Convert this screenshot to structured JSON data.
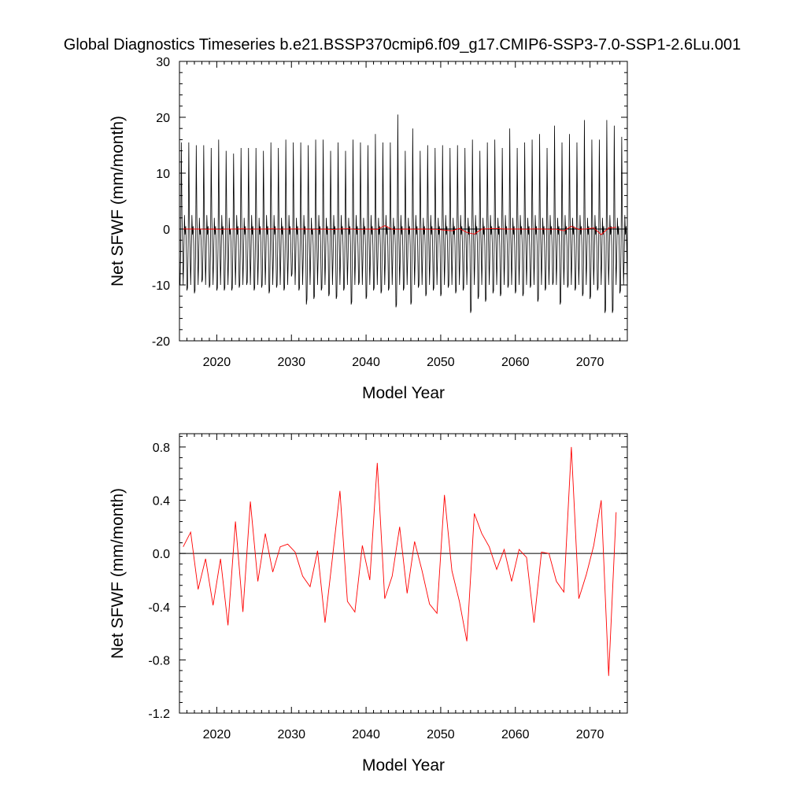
{
  "title": "Global Diagnostics Timeseries b.e21.BSSP370cmip6.f09_g17.CMIP6-SSP3-7.0-SSP1-2.6Lu.001",
  "colors": {
    "monthly_series": "#000000",
    "annual_series": "#ff0000",
    "zero_line": "#000000"
  },
  "chart_data": [
    {
      "type": "line",
      "xlabel": "Model Year",
      "ylabel": "Net SFWF (mm/month)",
      "xlim": [
        2015,
        2075
      ],
      "ylim": [
        -20,
        30
      ],
      "xticks": [
        2020,
        2030,
        2040,
        2050,
        2060,
        2070
      ],
      "yticks": [
        -20,
        -10,
        0,
        10,
        20,
        30
      ],
      "ytick_labels": [
        "-20",
        "-10",
        "0",
        "10",
        "20",
        "30"
      ],
      "grid": false,
      "reference_line": 0,
      "series": [
        {
          "color": "#000000",
          "sampling": "monthly",
          "x_start": 2015.0,
          "x_step": 0.08333,
          "values": [
            -9.5,
            -10.0,
            -3.0,
            15.5,
            2.5,
            -3.0,
            -10.0,
            -5.0,
            2.5,
            -1.0,
            0.5,
            -3.0,
            -11.0,
            -10.5,
            -3.0,
            15.5,
            2.0,
            -3.5,
            -10.0,
            -5.0,
            2.5,
            -1.0,
            0.5,
            -3.0,
            -11.5,
            -11.0,
            -3.5,
            15.0,
            2.0,
            -3.0,
            -10.0,
            -5.0,
            2.0,
            -1.0,
            0.0,
            -3.0,
            -9.5,
            -9.0,
            -3.0,
            15.0,
            2.5,
            -3.0,
            -10.0,
            -5.0,
            2.5,
            -1.0,
            0.5,
            -3.0,
            -10.5,
            -10.0,
            -3.0,
            14.5,
            2.0,
            -3.0,
            -10.0,
            -5.0,
            2.0,
            -1.0,
            0.5,
            -3.0,
            -11.0,
            -10.5,
            -3.5,
            16.0,
            2.5,
            -3.0,
            -10.0,
            -5.0,
            2.5,
            -1.0,
            0.5,
            -3.0,
            -11.0,
            -10.5,
            -3.5,
            14.0,
            2.0,
            -3.5,
            -10.0,
            -5.0,
            2.0,
            -1.0,
            0.0,
            -3.0,
            -11.0,
            -10.5,
            -3.0,
            13.5,
            2.0,
            -3.0,
            -10.0,
            -5.0,
            2.5,
            -1.0,
            0.5,
            -3.0,
            -10.5,
            -10.0,
            -3.0,
            14.5,
            2.0,
            -3.0,
            -10.0,
            -5.0,
            2.0,
            -1.0,
            0.5,
            -3.0,
            -10.0,
            -9.5,
            -3.0,
            14.5,
            2.5,
            -3.0,
            -10.0,
            -5.0,
            2.5,
            -1.0,
            0.5,
            -3.0,
            -11.0,
            -10.5,
            -3.0,
            14.5,
            2.0,
            -3.0,
            -10.0,
            -5.0,
            2.0,
            -1.0,
            0.5,
            -3.0,
            -10.5,
            -10.0,
            -3.0,
            14.0,
            2.0,
            -3.0,
            -10.0,
            -5.0,
            2.5,
            -1.0,
            0.5,
            -3.0,
            -11.5,
            -11.0,
            -3.5,
            15.5,
            2.5,
            -3.0,
            -10.0,
            -5.0,
            2.5,
            -1.0,
            0.5,
            -3.0,
            -10.5,
            -10.0,
            -3.0,
            14.5,
            2.0,
            -3.0,
            -10.0,
            -5.0,
            2.0,
            -1.0,
            0.5,
            -3.0,
            -11.0,
            -10.5,
            -3.0,
            16.0,
            2.5,
            -3.0,
            -10.0,
            -5.0,
            2.5,
            -1.0,
            0.5,
            -3.0,
            -8.5,
            -8.0,
            -3.0,
            15.5,
            2.5,
            -3.0,
            -10.0,
            -5.0,
            2.0,
            -1.0,
            0.5,
            -3.0,
            -11.0,
            -10.5,
            -3.0,
            15.5,
            2.0,
            -3.0,
            -10.0,
            -5.0,
            2.5,
            -1.0,
            0.5,
            -3.0,
            -13.5,
            -12.5,
            -3.5,
            15.0,
            2.0,
            -3.5,
            -10.0,
            -5.0,
            2.0,
            -1.0,
            0.0,
            -3.0,
            -12.5,
            -12.0,
            -3.5,
            16.0,
            2.5,
            -3.0,
            -10.0,
            -5.0,
            2.5,
            -1.0,
            0.5,
            -3.0,
            -11.0,
            -10.5,
            -3.0,
            16.0,
            2.0,
            -3.0,
            -10.0,
            -5.0,
            2.0,
            -1.0,
            0.5,
            -3.0,
            -12.0,
            -11.5,
            -3.5,
            14.0,
            2.0,
            -3.0,
            -10.0,
            -5.0,
            2.5,
            -1.0,
            0.5,
            -3.0,
            -12.5,
            -12.0,
            -3.5,
            15.5,
            2.5,
            -3.0,
            -10.0,
            -5.0,
            2.5,
            -1.0,
            0.5,
            -3.0,
            -11.0,
            -10.5,
            -3.0,
            14.0,
            2.0,
            -3.0,
            -10.0,
            -5.0,
            2.0,
            -1.0,
            0.5,
            -3.0,
            -13.5,
            -13.0,
            -3.5,
            16.0,
            2.5,
            -3.0,
            -10.0,
            -5.0,
            2.5,
            -1.0,
            0.5,
            -3.0,
            -10.0,
            -9.5,
            -3.0,
            15.5,
            2.0,
            -3.0,
            -10.0,
            -5.0,
            2.0,
            -1.0,
            0.5,
            -3.0,
            -12.5,
            -12.0,
            -3.5,
            15.0,
            2.5,
            -3.0,
            -10.0,
            -5.0,
            2.5,
            -1.0,
            0.5,
            -3.0,
            -11.0,
            -10.5,
            -3.0,
            17.0,
            2.0,
            -3.0,
            -10.0,
            -5.0,
            2.0,
            -1.0,
            0.5,
            -3.0,
            -11.5,
            -11.0,
            -3.5,
            15.5,
            2.5,
            -3.0,
            -10.0,
            -5.0,
            2.5,
            -1.0,
            0.5,
            -3.0,
            -11.0,
            -10.5,
            -3.0,
            15.5,
            2.0,
            -3.0,
            -10.0,
            -5.0,
            2.0,
            -1.0,
            0.5,
            -3.0,
            -14.0,
            -13.5,
            -3.5,
            20.5,
            2.5,
            -3.0,
            -10.0,
            -5.0,
            2.5,
            -1.0,
            0.5,
            -3.0,
            -11.0,
            -10.5,
            -3.0,
            14.0,
            2.0,
            -3.0,
            -10.0,
            -5.0,
            2.0,
            -1.0,
            0.5,
            -3.0,
            -13.5,
            -13.0,
            -3.5,
            18.0,
            2.5,
            -3.0,
            -10.0,
            -5.0,
            2.5,
            -1.0,
            0.5,
            -3.0,
            -10.5,
            -10.0,
            -3.0,
            14.0,
            2.0,
            -3.0,
            -10.0,
            -5.0,
            2.0,
            -1.0,
            0.5,
            -3.0,
            -12.0,
            -11.5,
            -3.0,
            15.0,
            2.5,
            -3.0,
            -10.0,
            -5.0,
            2.5,
            -1.0,
            0.5,
            -3.0,
            -11.0,
            -10.5,
            -3.0,
            14.5,
            2.0,
            -3.0,
            -10.0,
            -5.0,
            2.0,
            -1.0,
            0.5,
            -3.0,
            -12.0,
            -11.5,
            -3.5,
            15.0,
            2.5,
            -3.0,
            -10.0,
            -5.0,
            2.5,
            -1.0,
            0.5,
            -3.0,
            -10.5,
            -10.0,
            -3.0,
            14.5,
            2.0,
            -3.0,
            -10.0,
            -5.0,
            2.0,
            -1.0,
            0.5,
            -3.0,
            -11.5,
            -11.0,
            -3.0,
            15.0,
            2.5,
            -3.0,
            -10.0,
            -5.0,
            2.5,
            -1.0,
            0.5,
            -3.0,
            -11.0,
            -10.5,
            -3.0,
            14.5,
            2.0,
            -3.0,
            -10.0,
            -5.0,
            2.0,
            -1.0,
            0.5,
            -3.0,
            -15.0,
            -14.5,
            -3.5,
            16.0,
            2.5,
            -3.0,
            -10.0,
            -5.0,
            2.5,
            -1.0,
            0.5,
            -3.0,
            -12.5,
            -12.0,
            -3.5,
            14.0,
            2.0,
            -3.0,
            -10.0,
            -5.0,
            2.0,
            -1.0,
            0.5,
            -3.0,
            -13.0,
            -12.5,
            -3.5,
            15.5,
            2.5,
            -3.0,
            -10.0,
            -5.0,
            2.5,
            -1.0,
            0.5,
            -3.0,
            -11.5,
            -11.0,
            -3.0,
            16.0,
            2.0,
            -3.0,
            -10.0,
            -5.0,
            2.0,
            -1.0,
            0.5,
            -3.0,
            -12.0,
            -11.5,
            -3.0,
            14.5,
            2.5,
            -3.0,
            -10.0,
            -5.0,
            2.5,
            -1.0,
            0.5,
            -3.0,
            -10.5,
            -10.0,
            -3.0,
            18.0,
            2.0,
            -3.0,
            -10.0,
            -5.0,
            2.0,
            -1.0,
            0.5,
            -3.0,
            -11.5,
            -11.0,
            -3.5,
            14.5,
            2.5,
            -3.0,
            -10.0,
            -5.0,
            2.5,
            -1.0,
            0.5,
            -3.0,
            -12.0,
            -11.5,
            -3.5,
            15.5,
            2.0,
            -3.0,
            -10.0,
            -5.0,
            2.0,
            -1.0,
            0.5,
            -3.0,
            -10.5,
            -10.0,
            -3.0,
            16.0,
            2.5,
            -3.0,
            -10.0,
            -5.0,
            2.5,
            -1.0,
            0.5,
            -3.0,
            -13.0,
            -12.5,
            -3.5,
            17.0,
            2.0,
            -3.0,
            -10.0,
            -5.0,
            2.0,
            -1.0,
            0.5,
            -3.0,
            -11.0,
            -10.5,
            -3.0,
            14.5,
            2.5,
            -3.0,
            -10.0,
            -5.0,
            2.5,
            -1.0,
            0.5,
            -3.0,
            -10.0,
            -9.5,
            -3.0,
            18.5,
            2.0,
            -3.0,
            -10.0,
            -5.0,
            2.0,
            -1.0,
            0.5,
            -3.0,
            -13.5,
            -13.0,
            -3.5,
            15.5,
            2.5,
            -3.0,
            -10.0,
            -5.0,
            2.5,
            -1.0,
            0.5,
            -3.0,
            -10.5,
            -10.0,
            -3.0,
            17.0,
            2.0,
            -3.0,
            -10.0,
            -5.0,
            2.0,
            -1.0,
            0.5,
            -3.0,
            -11.0,
            -10.5,
            -3.0,
            15.5,
            2.5,
            -3.0,
            -10.0,
            -5.0,
            2.5,
            -1.0,
            0.5,
            -3.0,
            -12.0,
            -11.5,
            -3.5,
            19.5,
            2.0,
            -3.0,
            -10.0,
            -5.0,
            2.0,
            -1.0,
            0.5,
            -3.0,
            -12.5,
            -12.0,
            -3.5,
            16.0,
            2.5,
            -3.0,
            -10.0,
            -5.0,
            2.5,
            -1.0,
            0.5,
            -3.0,
            -11.0,
            -10.5,
            -3.0,
            16.0,
            2.0,
            -3.0,
            -10.0,
            -5.0,
            2.0,
            -1.0,
            0.5,
            -3.0,
            -15.0,
            -14.5,
            -3.5,
            19.5,
            2.5,
            -3.0,
            -10.0,
            -5.0,
            2.5,
            -1.0,
            0.5,
            -3.0,
            -15.0,
            -14.5,
            -3.5,
            18.5,
            2.0,
            -3.0,
            -10.0,
            -5.0,
            2.0,
            -1.0,
            0.5,
            -3.0,
            -11.5,
            -11.0,
            -3.0,
            16.5,
            2.5,
            -3.0,
            -10.0,
            -5.0,
            2.5,
            -1.0,
            0.5,
            -3.0,
            -10.5,
            -10.0,
            -3.0,
            17.5,
            3.5,
            -1.0,
            1.0,
            -1.5
          ]
        },
        {
          "color": "#ff0000",
          "sampling": "annual",
          "x_start": 2015.5,
          "x_step": 1,
          "values": [
            0.03,
            0.0,
            0.0,
            -0.03,
            0.0,
            -0.05,
            0.0,
            0.0,
            0.05,
            -0.03,
            0.0,
            0.0,
            0.05,
            -0.02,
            0.0,
            0.02,
            0.0,
            -0.02,
            -0.04,
            0.0,
            -0.08,
            0.0,
            0.06,
            -0.05,
            -0.04,
            0.0,
            -0.05,
            0.6,
            -0.04,
            -0.03,
            0.0,
            -0.03,
            0.0,
            -0.03,
            -0.05,
            -0.2,
            -0.3,
            0.1,
            -0.6,
            -0.9,
            0.0,
            0.05,
            0.1,
            0.0,
            0.0,
            0.0,
            -0.02,
            0.02,
            0.0,
            -0.03,
            -0.02,
            -0.3,
            0.5,
            -0.05,
            0.03,
            0.2,
            -1.0,
            0.2,
            0.3
          ]
        }
      ]
    },
    {
      "type": "line",
      "xlabel": "Model Year",
      "ylabel": "Net SFWF (mm/month)",
      "xlim": [
        2015,
        2075
      ],
      "ylim": [
        -1.2,
        0.9
      ],
      "xticks": [
        2020,
        2030,
        2040,
        2050,
        2060,
        2070
      ],
      "yticks": [
        -1.2,
        -0.8,
        -0.4,
        0.0,
        0.4,
        0.8
      ],
      "ytick_labels": [
        "-1.2",
        "-0.8",
        "-0.4",
        "0.0",
        "0.4",
        "0.8"
      ],
      "grid": false,
      "reference_line": 0,
      "series": [
        {
          "color": "#ff0000",
          "x": [
            2015.5,
            2016.5,
            2017.5,
            2018.5,
            2019.5,
            2020.5,
            2021.5,
            2022.5,
            2023.5,
            2024.5,
            2025.5,
            2026.5,
            2027.5,
            2028.5,
            2029.5,
            2030.5,
            2031.5,
            2032.5,
            2033.5,
            2034.5,
            2035.5,
            2036.5,
            2037.5,
            2038.5,
            2039.5,
            2040.5,
            2041.5,
            2042.5,
            2043.5,
            2044.5,
            2045.5,
            2046.5,
            2047.5,
            2048.5,
            2049.5,
            2050.5,
            2051.5,
            2052.5,
            2053.5,
            2054.5,
            2055.5,
            2056.5,
            2057.5,
            2058.5,
            2059.5,
            2060.5,
            2061.5,
            2062.5,
            2063.5,
            2064.5,
            2065.5,
            2066.5,
            2067.5,
            2068.5,
            2069.5,
            2070.5,
            2071.5,
            2072.5,
            2073.5
          ],
          "values": [
            0.05,
            0.16,
            -0.27,
            -0.04,
            -0.39,
            -0.04,
            -0.54,
            0.24,
            -0.44,
            0.39,
            -0.21,
            0.15,
            -0.14,
            0.05,
            0.07,
            0.01,
            -0.17,
            -0.25,
            0.02,
            -0.52,
            -0.03,
            0.47,
            -0.36,
            -0.44,
            0.06,
            -0.2,
            0.68,
            -0.34,
            -0.17,
            0.2,
            -0.3,
            0.09,
            -0.13,
            -0.38,
            -0.45,
            0.44,
            -0.13,
            -0.36,
            -0.66,
            0.3,
            0.15,
            0.05,
            -0.12,
            0.03,
            -0.21,
            0.03,
            -0.03,
            -0.52,
            0.01,
            0.0,
            -0.21,
            -0.29,
            0.8,
            -0.34,
            -0.16,
            0.06,
            0.4,
            -0.92,
            0.31
          ]
        }
      ]
    }
  ]
}
